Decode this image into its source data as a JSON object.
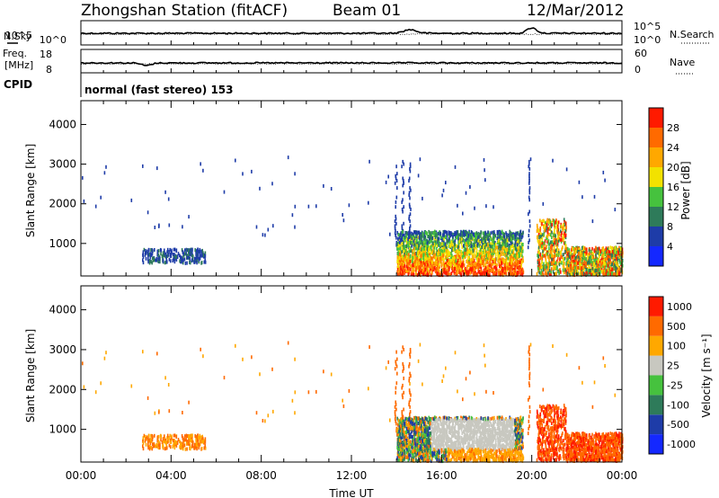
{
  "header": {
    "station": "Zhongshan Station (fitACF)",
    "beam": "Beam 01",
    "date": "12/Mar/2012"
  },
  "strip_panels": {
    "nsky_label": "N.Sky",
    "nsearch_label": "N.Search",
    "nsky_ticks": [
      "10^5",
      "10^0"
    ],
    "nsearch_ticks": [
      "10^5",
      "10^0"
    ],
    "freq_label_1": "Freq.",
    "freq_label_2": "[MHz]",
    "freq_ticks": [
      "18",
      "8"
    ],
    "nave_label": "Nave",
    "nave_ticks": [
      "60",
      "0"
    ],
    "cpid_label": "CPID",
    "cpid_text": "normal (fast stereo) 153"
  },
  "chart_data": [
    {
      "type": "heatmap",
      "name": "power",
      "ylabel": "Slant Range [km]",
      "ylim": [
        180,
        4600
      ],
      "yticks": [
        1000,
        2000,
        3000,
        4000
      ],
      "xlim": [
        0,
        24
      ],
      "colorbar": {
        "label": "Power [dB]",
        "range": [
          0,
          32
        ],
        "ticks": [
          "4",
          "8",
          "12",
          "16",
          "20",
          "24",
          "28"
        ],
        "colors": [
          "#1428ff",
          "#1e3ca8",
          "#2e7b5a",
          "#46c23e",
          "#f2e200",
          "#ffa800",
          "#ff6a00",
          "#ff1a00"
        ]
      },
      "regions": [
        {
          "t0": 2.7,
          "t1": 5.5,
          "r0": 500,
          "r1": 900,
          "level": "weak"
        },
        {
          "t0": 14.0,
          "t1": 19.6,
          "r0": 180,
          "r1": 1300,
          "level": "strong"
        },
        {
          "t0": 20.2,
          "t1": 24.0,
          "r0": 180,
          "r1": 1000,
          "level": "strong"
        }
      ]
    },
    {
      "type": "heatmap",
      "name": "velocity",
      "ylabel": "Slant Range [km]",
      "ylim": [
        180,
        4600
      ],
      "yticks": [
        1000,
        2000,
        3000,
        4000
      ],
      "xlim": [
        0,
        24
      ],
      "xticks": [
        "00:00",
        "04:00",
        "08:00",
        "12:00",
        "16:00",
        "20:00",
        "00:00"
      ],
      "xlabel": "Time UT",
      "colorbar": {
        "label": "Velocity [m s⁻¹]",
        "ticks": [
          "1000",
          "500",
          "100",
          "25",
          "-25",
          "-100",
          "-500",
          "-1000"
        ],
        "colors": [
          "#1428ff",
          "#1e3ca8",
          "#2e7b5a",
          "#46c23e",
          "#c8c8c0",
          "#ffa800",
          "#ff6a00",
          "#ff1a00"
        ]
      }
    }
  ]
}
